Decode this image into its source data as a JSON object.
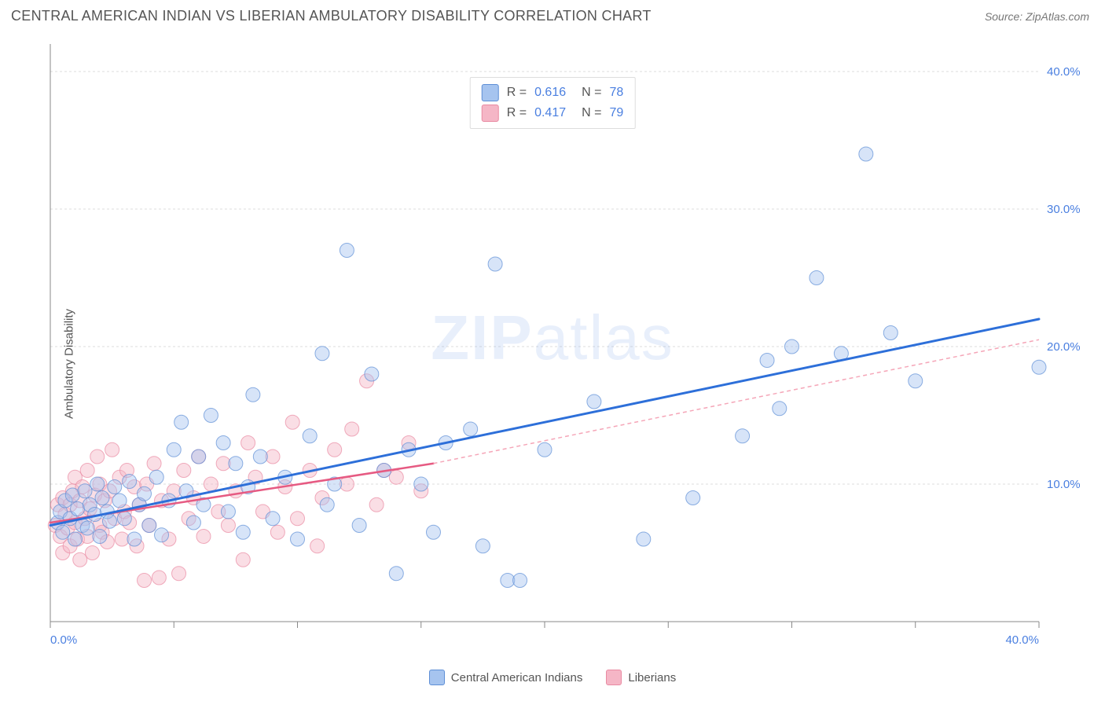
{
  "title": "CENTRAL AMERICAN INDIAN VS LIBERIAN AMBULATORY DISABILITY CORRELATION CHART",
  "source_label": "Source: ",
  "source_name": "ZipAtlas.com",
  "watermark_zip": "ZIP",
  "watermark_atlas": "atlas",
  "ylabel": "Ambulatory Disability",
  "chart": {
    "type": "scatter",
    "background_color": "#ffffff",
    "grid_color": "#dddddd",
    "axis_color": "#888888",
    "tick_label_color": "#4a7fe0",
    "axis_label_color": "#555555",
    "xlim": [
      0,
      40
    ],
    "ylim": [
      0,
      42
    ],
    "xticks": [
      0,
      5,
      10,
      15,
      20,
      25,
      30,
      35,
      40
    ],
    "xtick_labels": [
      "0.0%",
      "",
      "",
      "",
      "",
      "",
      "",
      "",
      "40.0%"
    ],
    "yticks": [
      10,
      20,
      30,
      40
    ],
    "ytick_labels": [
      "10.0%",
      "20.0%",
      "30.0%",
      "40.0%"
    ],
    "tick_fontsize": 15,
    "marker_radius": 9,
    "marker_opacity": 0.45,
    "series": [
      {
        "name": "Central American Indians",
        "key": "blue",
        "point_fill": "#a6c4ef",
        "point_stroke": "#5e8fd6",
        "trend_color": "#2d6fd9",
        "trend_width": 3,
        "trend_dash": "none",
        "extrap_dash": "none",
        "swatch_fill": "#a6c4ef",
        "swatch_stroke": "#5e8fd6",
        "r_label": "R = ",
        "r_value": "0.616",
        "n_label": "N = ",
        "n_value": "78",
        "trend_x": [
          0,
          40
        ],
        "trend_y": [
          7,
          22
        ],
        "points": [
          [
            0.3,
            7.2
          ],
          [
            0.4,
            8.0
          ],
          [
            0.5,
            6.5
          ],
          [
            0.6,
            8.8
          ],
          [
            0.8,
            7.5
          ],
          [
            0.9,
            9.2
          ],
          [
            1.0,
            6.0
          ],
          [
            1.1,
            8.2
          ],
          [
            1.3,
            7.0
          ],
          [
            1.4,
            9.5
          ],
          [
            1.5,
            6.8
          ],
          [
            1.6,
            8.5
          ],
          [
            1.8,
            7.8
          ],
          [
            1.9,
            10.0
          ],
          [
            2.0,
            6.2
          ],
          [
            2.1,
            9.0
          ],
          [
            2.3,
            8.0
          ],
          [
            2.4,
            7.3
          ],
          [
            2.6,
            9.8
          ],
          [
            2.8,
            8.8
          ],
          [
            3.0,
            7.5
          ],
          [
            3.2,
            10.2
          ],
          [
            3.4,
            6.0
          ],
          [
            3.6,
            8.5
          ],
          [
            3.8,
            9.3
          ],
          [
            4.0,
            7.0
          ],
          [
            4.3,
            10.5
          ],
          [
            4.5,
            6.3
          ],
          [
            4.8,
            8.8
          ],
          [
            5.0,
            12.5
          ],
          [
            5.3,
            14.5
          ],
          [
            5.5,
            9.5
          ],
          [
            5.8,
            7.2
          ],
          [
            6.0,
            12.0
          ],
          [
            6.2,
            8.5
          ],
          [
            6.5,
            15.0
          ],
          [
            7.0,
            13.0
          ],
          [
            7.2,
            8.0
          ],
          [
            7.5,
            11.5
          ],
          [
            7.8,
            6.5
          ],
          [
            8.0,
            9.8
          ],
          [
            8.2,
            16.5
          ],
          [
            8.5,
            12.0
          ],
          [
            9.0,
            7.5
          ],
          [
            9.5,
            10.5
          ],
          [
            10.0,
            6.0
          ],
          [
            10.5,
            13.5
          ],
          [
            11.0,
            19.5
          ],
          [
            11.2,
            8.5
          ],
          [
            11.5,
            10.0
          ],
          [
            12.0,
            27.0
          ],
          [
            12.5,
            7.0
          ],
          [
            13.0,
            18.0
          ],
          [
            13.5,
            11.0
          ],
          [
            14.0,
            3.5
          ],
          [
            14.5,
            12.5
          ],
          [
            15.0,
            10.0
          ],
          [
            15.5,
            6.5
          ],
          [
            16.0,
            13.0
          ],
          [
            17.0,
            14.0
          ],
          [
            17.5,
            5.5
          ],
          [
            18.0,
            26.0
          ],
          [
            18.5,
            3.0
          ],
          [
            19.0,
            3.0
          ],
          [
            20.0,
            12.5
          ],
          [
            22.0,
            16.0
          ],
          [
            24.0,
            6.0
          ],
          [
            26.0,
            9.0
          ],
          [
            28.0,
            13.5
          ],
          [
            29.0,
            19.0
          ],
          [
            29.5,
            15.5
          ],
          [
            30.0,
            20.0
          ],
          [
            31.0,
            25.0
          ],
          [
            32.0,
            19.5
          ],
          [
            33.0,
            34.0
          ],
          [
            34.0,
            21.0
          ],
          [
            35.0,
            17.5
          ],
          [
            40.0,
            18.5
          ]
        ]
      },
      {
        "name": "Liberians",
        "key": "pink",
        "point_fill": "#f5b6c6",
        "point_stroke": "#e98aa2",
        "trend_color": "#e65a82",
        "trend_width": 2.5,
        "trend_dash": "none",
        "extrap_color": "#f5a6b8",
        "extrap_dash": "5,4",
        "extrap_width": 1.5,
        "swatch_fill": "#f5b6c6",
        "swatch_stroke": "#e98aa2",
        "r_label": "R = ",
        "r_value": "0.417",
        "n_label": "N = ",
        "n_value": "79",
        "trend_solid_x": [
          0,
          15.5
        ],
        "trend_solid_y": [
          7.2,
          11.5
        ],
        "trend_extrap_x": [
          15.5,
          40
        ],
        "trend_extrap_y": [
          11.5,
          20.5
        ],
        "points": [
          [
            0.2,
            7.0
          ],
          [
            0.3,
            8.5
          ],
          [
            0.4,
            6.2
          ],
          [
            0.5,
            9.0
          ],
          [
            0.5,
            5.0
          ],
          [
            0.6,
            7.8
          ],
          [
            0.7,
            6.8
          ],
          [
            0.8,
            8.5
          ],
          [
            0.8,
            5.5
          ],
          [
            0.9,
            9.5
          ],
          [
            1.0,
            7.2
          ],
          [
            1.0,
            10.5
          ],
          [
            1.1,
            6.0
          ],
          [
            1.2,
            8.8
          ],
          [
            1.2,
            4.5
          ],
          [
            1.3,
            9.8
          ],
          [
            1.4,
            7.5
          ],
          [
            1.5,
            11.0
          ],
          [
            1.5,
            6.2
          ],
          [
            1.6,
            8.2
          ],
          [
            1.7,
            5.0
          ],
          [
            1.8,
            9.2
          ],
          [
            1.9,
            12.0
          ],
          [
            2.0,
            7.0
          ],
          [
            2.0,
            10.0
          ],
          [
            2.1,
            6.5
          ],
          [
            2.2,
            8.8
          ],
          [
            2.3,
            5.8
          ],
          [
            2.4,
            9.5
          ],
          [
            2.5,
            12.5
          ],
          [
            2.6,
            7.5
          ],
          [
            2.8,
            10.5
          ],
          [
            2.9,
            6.0
          ],
          [
            3.0,
            8.0
          ],
          [
            3.1,
            11.0
          ],
          [
            3.2,
            7.2
          ],
          [
            3.4,
            9.8
          ],
          [
            3.5,
            5.5
          ],
          [
            3.6,
            8.5
          ],
          [
            3.8,
            3.0
          ],
          [
            3.9,
            10.0
          ],
          [
            4.0,
            7.0
          ],
          [
            4.2,
            11.5
          ],
          [
            4.4,
            3.2
          ],
          [
            4.5,
            8.8
          ],
          [
            4.8,
            6.0
          ],
          [
            5.0,
            9.5
          ],
          [
            5.2,
            3.5
          ],
          [
            5.4,
            11.0
          ],
          [
            5.6,
            7.5
          ],
          [
            5.8,
            9.0
          ],
          [
            6.0,
            12.0
          ],
          [
            6.2,
            6.2
          ],
          [
            6.5,
            10.0
          ],
          [
            6.8,
            8.0
          ],
          [
            7.0,
            11.5
          ],
          [
            7.2,
            7.0
          ],
          [
            7.5,
            9.5
          ],
          [
            7.8,
            4.5
          ],
          [
            8.0,
            13.0
          ],
          [
            8.3,
            10.5
          ],
          [
            8.6,
            8.0
          ],
          [
            9.0,
            12.0
          ],
          [
            9.2,
            6.5
          ],
          [
            9.5,
            9.8
          ],
          [
            9.8,
            14.5
          ],
          [
            10.0,
            7.5
          ],
          [
            10.5,
            11.0
          ],
          [
            10.8,
            5.5
          ],
          [
            11.0,
            9.0
          ],
          [
            11.5,
            12.5
          ],
          [
            12.0,
            10.0
          ],
          [
            12.2,
            14.0
          ],
          [
            12.8,
            17.5
          ],
          [
            13.2,
            8.5
          ],
          [
            13.5,
            11.0
          ],
          [
            14.0,
            10.5
          ],
          [
            14.5,
            13.0
          ],
          [
            15.0,
            9.5
          ]
        ]
      }
    ],
    "legend_bottom": [
      {
        "label": "Central American Indians",
        "fill": "#a6c4ef",
        "stroke": "#5e8fd6"
      },
      {
        "label": "Liberians",
        "fill": "#f5b6c6",
        "stroke": "#e98aa2"
      }
    ]
  }
}
